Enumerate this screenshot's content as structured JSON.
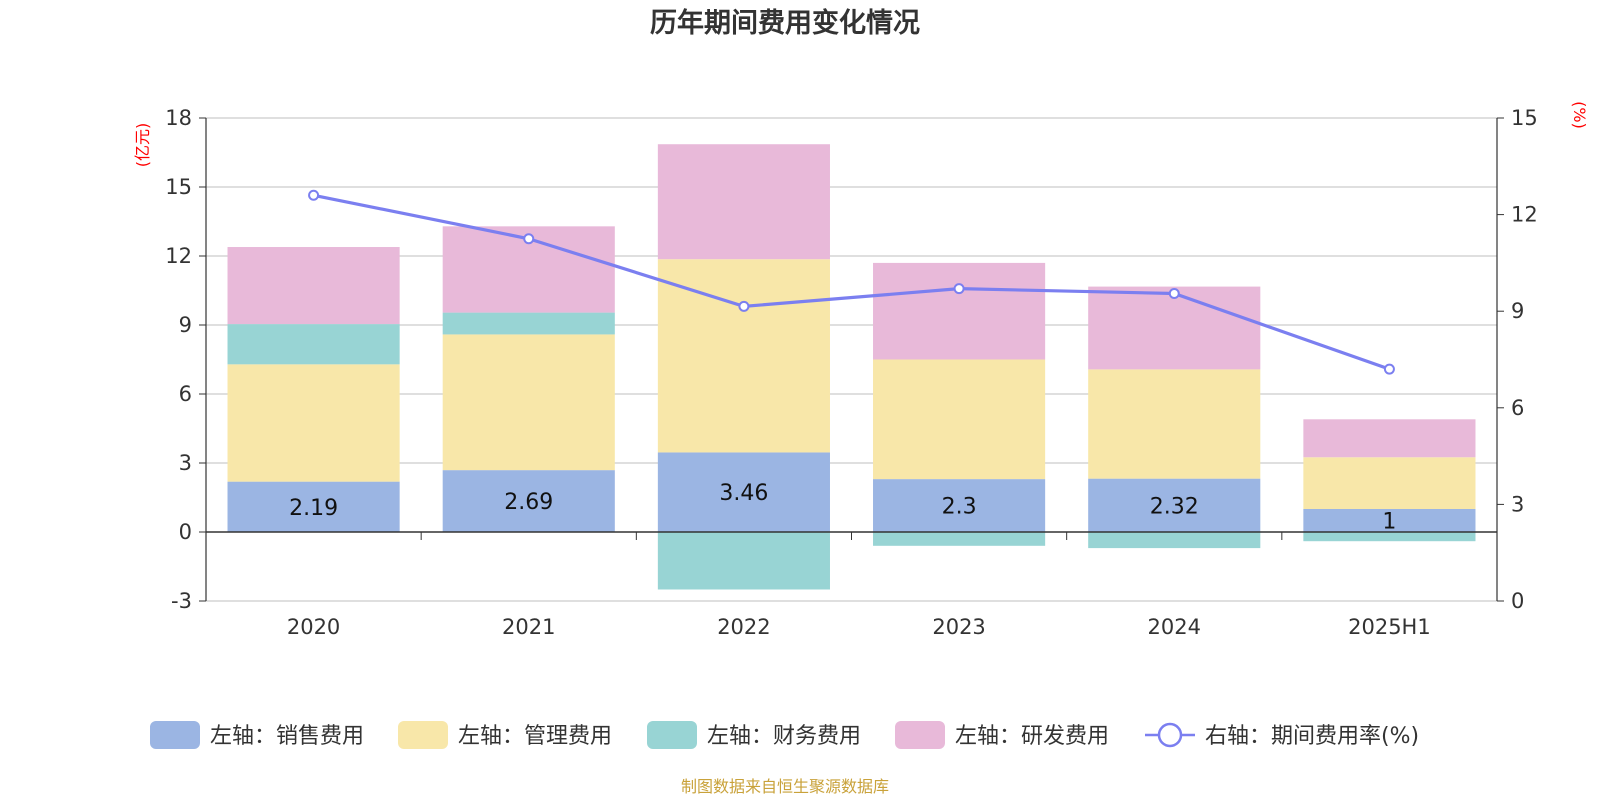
{
  "chart_data": {
    "type": "bar",
    "stacked": true,
    "title": "历年期间费用变化情况",
    "categories": [
      "2020",
      "2021",
      "2022",
      "2023",
      "2024",
      "2025H1"
    ],
    "y_left": {
      "unit": "(亿元)",
      "min": -3,
      "max": 18,
      "ticks": [
        "-3",
        "0",
        "3",
        "6",
        "9",
        "12",
        "15",
        "18"
      ]
    },
    "y_right": {
      "unit": "(%)",
      "min": 0,
      "max": 15,
      "ticks": [
        "0",
        "3",
        "6",
        "9",
        "12",
        "15"
      ]
    },
    "series": [
      {
        "name": "左轴：销售费用",
        "type": "bar",
        "axis": "left",
        "color": "#9bb5e3",
        "values": [
          2.19,
          2.69,
          3.46,
          2.3,
          2.32,
          1
        ],
        "labels": [
          "2.19",
          "2.69",
          "3.46",
          "2.3",
          "2.32",
          "1"
        ]
      },
      {
        "name": "左轴：管理费用",
        "type": "bar",
        "axis": "left",
        "color": "#f8e7a9",
        "values": [
          5.1,
          5.9,
          8.4,
          5.2,
          4.75,
          2.25
        ]
      },
      {
        "name": "左轴：财务费用",
        "type": "bar",
        "axis": "left",
        "color": "#98d4d4",
        "values": [
          1.75,
          0.95,
          -2.5,
          -0.6,
          -0.7,
          -0.4
        ]
      },
      {
        "name": "左轴：研发费用",
        "type": "bar",
        "axis": "left",
        "color": "#e8b9d9",
        "values": [
          3.35,
          3.75,
          5.0,
          4.2,
          3.6,
          1.65
        ]
      },
      {
        "name": "右轴：期间费用率(%)",
        "type": "line",
        "axis": "right",
        "color": "#7b7ff0",
        "values": [
          12.6,
          11.25,
          9.15,
          9.7,
          9.55,
          7.2
        ]
      }
    ],
    "grid": true,
    "legend_position": "bottom",
    "source": "制图数据来自恒生聚源数据库"
  }
}
